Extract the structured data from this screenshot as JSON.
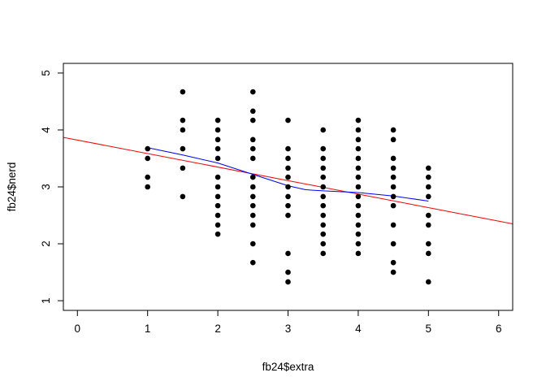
{
  "chart_data": {
    "type": "scatter",
    "title": "",
    "xlabel": "fb24$extra",
    "ylabel": "fb24$nerd",
    "xlim": [
      -0.2,
      6.2
    ],
    "ylim": [
      0.83,
      5.17
    ],
    "xticks": [
      0,
      1,
      2,
      3,
      4,
      5,
      6
    ],
    "yticks": [
      1,
      2,
      3,
      4,
      5
    ],
    "grid": false,
    "points": [
      {
        "x": 1,
        "y": 3.67
      },
      {
        "x": 1,
        "y": 3.5
      },
      {
        "x": 1,
        "y": 3.17
      },
      {
        "x": 1,
        "y": 3.0
      },
      {
        "x": 1.5,
        "y": 4.67
      },
      {
        "x": 1.5,
        "y": 4.17
      },
      {
        "x": 1.5,
        "y": 4.0
      },
      {
        "x": 1.5,
        "y": 3.67
      },
      {
        "x": 1.5,
        "y": 3.33
      },
      {
        "x": 1.5,
        "y": 2.83
      },
      {
        "x": 2,
        "y": 4.17
      },
      {
        "x": 2,
        "y": 4.0
      },
      {
        "x": 2,
        "y": 3.83
      },
      {
        "x": 2,
        "y": 3.67
      },
      {
        "x": 2,
        "y": 3.5
      },
      {
        "x": 2,
        "y": 3.17
      },
      {
        "x": 2,
        "y": 3.0
      },
      {
        "x": 2,
        "y": 2.83
      },
      {
        "x": 2,
        "y": 2.67
      },
      {
        "x": 2,
        "y": 2.5
      },
      {
        "x": 2,
        "y": 2.33
      },
      {
        "x": 2,
        "y": 2.17
      },
      {
        "x": 2.5,
        "y": 4.67
      },
      {
        "x": 2.5,
        "y": 4.33
      },
      {
        "x": 2.5,
        "y": 4.17
      },
      {
        "x": 2.5,
        "y": 3.83
      },
      {
        "x": 2.5,
        "y": 3.67
      },
      {
        "x": 2.5,
        "y": 3.5
      },
      {
        "x": 2.5,
        "y": 3.17
      },
      {
        "x": 2.5,
        "y": 3.0
      },
      {
        "x": 2.5,
        "y": 2.83
      },
      {
        "x": 2.5,
        "y": 2.67
      },
      {
        "x": 2.5,
        "y": 2.5
      },
      {
        "x": 2.5,
        "y": 2.33
      },
      {
        "x": 2.5,
        "y": 2.0
      },
      {
        "x": 2.5,
        "y": 1.67
      },
      {
        "x": 3,
        "y": 4.17
      },
      {
        "x": 3,
        "y": 3.67
      },
      {
        "x": 3,
        "y": 3.5
      },
      {
        "x": 3,
        "y": 3.33
      },
      {
        "x": 3,
        "y": 3.17
      },
      {
        "x": 3,
        "y": 3.0
      },
      {
        "x": 3,
        "y": 2.83
      },
      {
        "x": 3,
        "y": 2.67
      },
      {
        "x": 3,
        "y": 2.5
      },
      {
        "x": 3,
        "y": 1.83
      },
      {
        "x": 3,
        "y": 1.5
      },
      {
        "x": 3,
        "y": 1.33
      },
      {
        "x": 3.5,
        "y": 4.0
      },
      {
        "x": 3.5,
        "y": 3.67
      },
      {
        "x": 3.5,
        "y": 3.5
      },
      {
        "x": 3.5,
        "y": 3.33
      },
      {
        "x": 3.5,
        "y": 3.17
      },
      {
        "x": 3.5,
        "y": 3.0
      },
      {
        "x": 3.5,
        "y": 2.83
      },
      {
        "x": 3.5,
        "y": 2.67
      },
      {
        "x": 3.5,
        "y": 2.5
      },
      {
        "x": 3.5,
        "y": 2.33
      },
      {
        "x": 3.5,
        "y": 2.17
      },
      {
        "x": 3.5,
        "y": 2.0
      },
      {
        "x": 3.5,
        "y": 1.83
      },
      {
        "x": 4,
        "y": 4.17
      },
      {
        "x": 4,
        "y": 4.0
      },
      {
        "x": 4,
        "y": 3.83
      },
      {
        "x": 4,
        "y": 3.67
      },
      {
        "x": 4,
        "y": 3.5
      },
      {
        "x": 4,
        "y": 3.33
      },
      {
        "x": 4,
        "y": 3.17
      },
      {
        "x": 4,
        "y": 3.0
      },
      {
        "x": 4,
        "y": 2.83
      },
      {
        "x": 4,
        "y": 2.67
      },
      {
        "x": 4,
        "y": 2.5
      },
      {
        "x": 4,
        "y": 2.33
      },
      {
        "x": 4,
        "y": 2.17
      },
      {
        "x": 4,
        "y": 2.0
      },
      {
        "x": 4,
        "y": 1.83
      },
      {
        "x": 4.5,
        "y": 4.0
      },
      {
        "x": 4.5,
        "y": 3.83
      },
      {
        "x": 4.5,
        "y": 3.5
      },
      {
        "x": 4.5,
        "y": 3.33
      },
      {
        "x": 4.5,
        "y": 3.17
      },
      {
        "x": 4.5,
        "y": 3.0
      },
      {
        "x": 4.5,
        "y": 2.83
      },
      {
        "x": 4.5,
        "y": 2.67
      },
      {
        "x": 4.5,
        "y": 2.33
      },
      {
        "x": 4.5,
        "y": 2.0
      },
      {
        "x": 4.5,
        "y": 1.67
      },
      {
        "x": 4.5,
        "y": 1.5
      },
      {
        "x": 5,
        "y": 3.33
      },
      {
        "x": 5,
        "y": 3.17
      },
      {
        "x": 5,
        "y": 3.0
      },
      {
        "x": 5,
        "y": 2.83
      },
      {
        "x": 5,
        "y": 2.5
      },
      {
        "x": 5,
        "y": 2.33
      },
      {
        "x": 5,
        "y": 2.0
      },
      {
        "x": 5,
        "y": 1.83
      },
      {
        "x": 5,
        "y": 1.33
      }
    ],
    "regression_line": {
      "color": "#ff0000",
      "x": [
        -0.2,
        6.2
      ],
      "y": [
        3.87,
        2.35
      ]
    },
    "smooth_line": {
      "color": "#0000ff",
      "x": [
        1.0,
        1.5,
        2.0,
        2.5,
        3.0,
        3.25,
        3.5,
        4.0,
        4.5,
        5.0
      ],
      "y": [
        3.69,
        3.56,
        3.42,
        3.22,
        3.02,
        2.95,
        2.93,
        2.9,
        2.84,
        2.75
      ]
    },
    "point_color": "#000000"
  }
}
